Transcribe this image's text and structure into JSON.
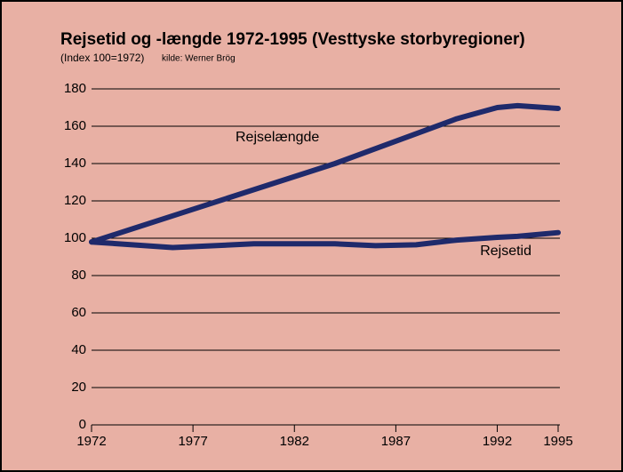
{
  "chart_data": {
    "type": "line",
    "title": "Rejsetid og -længde 1972-1995 (Vesttyske storbyregioner)",
    "subtitle": "(Index 100=1972)",
    "source": "kilde: Werner Brög",
    "x": [
      1972,
      1976,
      1980,
      1984,
      1986,
      1988,
      1990,
      1992,
      1993,
      1995
    ],
    "series": [
      {
        "name": "Rejselængde",
        "color": "#1f2a6b",
        "values": [
          98,
          112,
          126,
          140,
          148,
          156,
          164,
          170,
          171,
          169.5
        ]
      },
      {
        "name": "Rejsetid",
        "color": "#1f2a6b",
        "values": [
          98,
          95,
          97,
          97,
          96,
          96.5,
          99,
          100.5,
          101,
          103
        ]
      }
    ],
    "xlim": [
      1972,
      1995
    ],
    "xticks": [
      1972,
      1977,
      1982,
      1987,
      1992,
      1995
    ],
    "ylim": [
      0,
      180
    ],
    "yticks": [
      0,
      20,
      40,
      60,
      80,
      100,
      120,
      140,
      160,
      180
    ],
    "grid": true
  }
}
